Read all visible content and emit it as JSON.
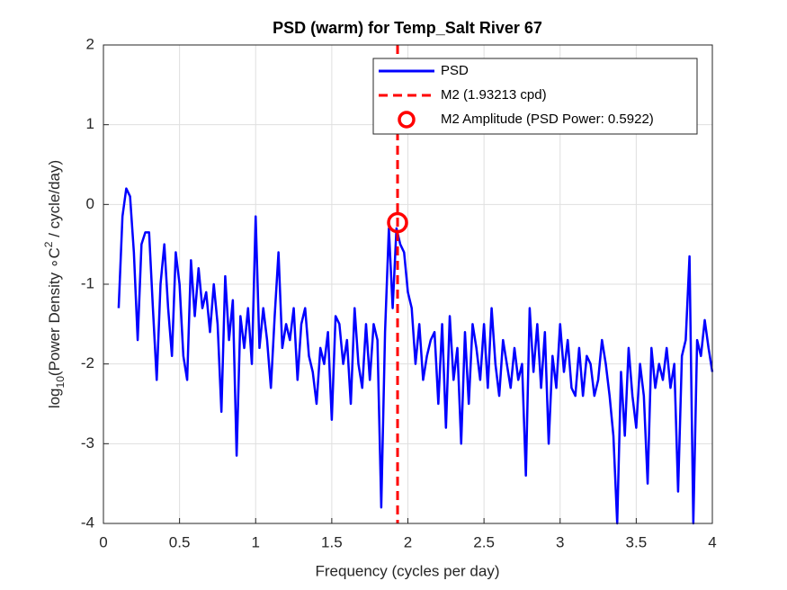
{
  "chart_data": {
    "type": "line",
    "title": "PSD (warm) for Temp_Salt River 67",
    "xlabel": "Frequency (cycles per day)",
    "ylabel": [
      "log",
      "10",
      "(Power Density ∘C",
      "2",
      " / cycle/day)"
    ],
    "x": [
      0.1,
      0.125,
      0.15,
      0.175,
      0.2,
      0.225,
      0.25,
      0.275,
      0.3,
      0.325,
      0.35,
      0.375,
      0.4,
      0.425,
      0.45,
      0.475,
      0.5,
      0.525,
      0.55,
      0.575,
      0.6,
      0.625,
      0.65,
      0.675,
      0.7,
      0.725,
      0.75,
      0.775,
      0.8,
      0.825,
      0.85,
      0.875,
      0.9,
      0.925,
      0.95,
      0.975,
      1.0,
      1.025,
      1.05,
      1.075,
      1.1,
      1.125,
      1.15,
      1.175,
      1.2,
      1.225,
      1.25,
      1.275,
      1.3,
      1.325,
      1.35,
      1.375,
      1.4,
      1.425,
      1.45,
      1.475,
      1.5,
      1.525,
      1.55,
      1.575,
      1.6,
      1.625,
      1.65,
      1.675,
      1.7,
      1.725,
      1.75,
      1.775,
      1.8,
      1.825,
      1.85,
      1.875,
      1.9,
      1.925,
      1.95,
      1.975,
      2.0,
      2.025,
      2.05,
      2.075,
      2.1,
      2.125,
      2.15,
      2.175,
      2.2,
      2.225,
      2.25,
      2.275,
      2.3,
      2.325,
      2.35,
      2.375,
      2.4,
      2.425,
      2.45,
      2.475,
      2.5,
      2.525,
      2.55,
      2.575,
      2.6,
      2.625,
      2.65,
      2.675,
      2.7,
      2.725,
      2.75,
      2.775,
      2.8,
      2.825,
      2.85,
      2.875,
      2.9,
      2.925,
      2.95,
      2.975,
      3.0,
      3.025,
      3.05,
      3.075,
      3.1,
      3.125,
      3.15,
      3.175,
      3.2,
      3.225,
      3.25,
      3.275,
      3.3,
      3.325,
      3.35,
      3.375,
      3.4,
      3.425,
      3.45,
      3.475,
      3.5,
      3.525,
      3.55,
      3.575,
      3.6,
      3.625,
      3.65,
      3.675,
      3.7,
      3.725,
      3.75,
      3.775,
      3.8,
      3.825,
      3.85,
      3.875,
      3.9,
      3.925,
      3.95,
      3.975,
      4.0
    ],
    "series": [
      {
        "name": "PSD",
        "color": "#0000ff",
        "values": [
          -1.3,
          -0.15,
          0.2,
          0.1,
          -0.6,
          -1.7,
          -0.5,
          -0.35,
          -0.35,
          -1.3,
          -2.2,
          -1.0,
          -0.5,
          -1.3,
          -1.9,
          -0.6,
          -1.0,
          -1.9,
          -2.2,
          -0.7,
          -1.4,
          -0.8,
          -1.3,
          -1.1,
          -1.6,
          -1.0,
          -1.5,
          -2.6,
          -0.9,
          -1.7,
          -1.2,
          -3.15,
          -1.4,
          -1.8,
          -1.3,
          -2.0,
          -0.15,
          -1.8,
          -1.3,
          -1.7,
          -2.3,
          -1.4,
          -0.6,
          -1.8,
          -1.5,
          -1.7,
          -1.3,
          -2.2,
          -1.5,
          -1.3,
          -1.9,
          -2.1,
          -2.5,
          -1.8,
          -2.0,
          -1.6,
          -2.7,
          -1.4,
          -1.5,
          -2.0,
          -1.7,
          -2.5,
          -1.3,
          -2.0,
          -2.3,
          -1.5,
          -2.2,
          -1.5,
          -1.7,
          -3.8,
          -1.6,
          -0.3,
          -1.3,
          -0.3,
          -0.5,
          -0.6,
          -1.1,
          -1.3,
          -2.0,
          -1.5,
          -2.2,
          -1.9,
          -1.7,
          -1.6,
          -2.5,
          -1.5,
          -2.8,
          -1.4,
          -2.2,
          -1.8,
          -3.0,
          -1.6,
          -2.5,
          -1.5,
          -1.8,
          -2.2,
          -1.5,
          -2.3,
          -1.3,
          -2.0,
          -2.4,
          -1.7,
          -2.0,
          -2.3,
          -1.8,
          -2.2,
          -2.0,
          -3.4,
          -1.3,
          -2.1,
          -1.5,
          -2.3,
          -1.6,
          -3.0,
          -1.9,
          -2.3,
          -1.5,
          -2.1,
          -1.7,
          -2.3,
          -2.4,
          -1.8,
          -2.4,
          -1.9,
          -2.0,
          -2.4,
          -2.2,
          -1.7,
          -2.0,
          -2.4,
          -2.9,
          -4.0,
          -2.1,
          -2.9,
          -1.8,
          -2.4,
          -2.8,
          -2.0,
          -2.4,
          -3.5,
          -1.8,
          -2.3,
          -2.0,
          -2.2,
          -1.8,
          -2.3,
          -2.0,
          -3.6,
          -1.9,
          -1.7,
          -0.65,
          -4.0,
          -1.7,
          -1.9,
          -1.45,
          -1.8,
          -2.1
        ]
      }
    ],
    "reference_line": {
      "name": "M2 (1.93213 cpd)",
      "x": 1.93213,
      "color": "#ff0000"
    },
    "marker": {
      "name": "M2 Amplitude (PSD Power: 0.5922)",
      "x": 1.93213,
      "y": -0.2276,
      "color": "#ff0000"
    },
    "xlim": [
      0,
      4
    ],
    "xticks": [
      0,
      0.5,
      1,
      1.5,
      2,
      2.5,
      3,
      3.5,
      4
    ],
    "ylim": [
      -4,
      2
    ],
    "yticks": [
      -4,
      -3,
      -2,
      -1,
      0,
      1,
      2
    ],
    "grid": true,
    "legend": "top-right"
  }
}
